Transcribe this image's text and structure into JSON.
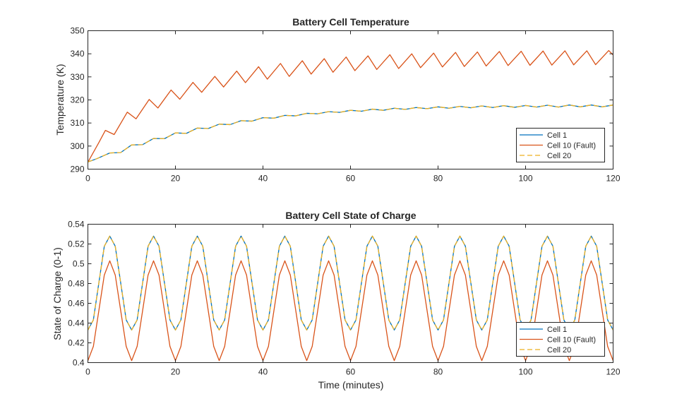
{
  "chart_data": [
    {
      "type": "line",
      "title": "Battery Cell Temperature",
      "xlabel": "",
      "ylabel": "Temperature (K)",
      "xlim": [
        0,
        120
      ],
      "ylim": [
        290,
        350
      ],
      "xticks": [
        0,
        20,
        40,
        60,
        80,
        100,
        120
      ],
      "yticks": [
        290,
        300,
        310,
        320,
        330,
        340,
        350
      ],
      "xtick_labels": [
        "0",
        "20",
        "40",
        "60",
        "80",
        "100",
        "120"
      ],
      "ytick_labels": [
        "290",
        "300",
        "310",
        "320",
        "330",
        "340",
        "350"
      ],
      "grid": false,
      "legend_position": "bottom-right",
      "series": [
        {
          "name": "Cell 1",
          "color": "#0072BD",
          "dash": "solid",
          "x": [
            0,
            2,
            5,
            7.5,
            10,
            12.5,
            15,
            17.5,
            20,
            22.5,
            25,
            27.5,
            30,
            32.5,
            35,
            37.5,
            40,
            42.5,
            45,
            47.5,
            50,
            52.5,
            55,
            57.5,
            60,
            62.5,
            65,
            67.5,
            70,
            72.5,
            75,
            77.5,
            80,
            82.5,
            85,
            87.5,
            90,
            92.5,
            95,
            97.5,
            100,
            102.5,
            105,
            107.5,
            110,
            112.5,
            115,
            117.5,
            120
          ],
          "y": [
            293.1,
            294.5,
            297.0,
            297.2,
            300.5,
            300.6,
            303.3,
            303.2,
            305.7,
            305.5,
            307.8,
            307.6,
            309.5,
            309.3,
            311.0,
            310.8,
            312.3,
            312.1,
            313.3,
            313.1,
            314.2,
            314.0,
            314.9,
            314.6,
            315.5,
            315.1,
            316.0,
            315.5,
            316.4,
            315.9,
            316.7,
            316.2,
            317.0,
            316.4,
            317.2,
            316.6,
            317.4,
            316.7,
            317.5,
            316.8,
            317.6,
            316.9,
            317.7,
            316.9,
            317.8,
            317.0,
            317.8,
            317.0,
            317.8
          ]
        },
        {
          "name": "Cell 10 (Fault)",
          "color": "#D95319",
          "dash": "solid",
          "x": [
            0,
            2.5,
            4,
            6,
            9,
            11,
            14,
            16,
            19,
            21,
            24,
            26,
            29,
            31,
            34,
            36,
            39,
            41,
            44,
            46,
            49,
            51,
            54,
            56,
            59,
            61,
            64,
            66,
            69,
            71,
            74,
            76,
            79,
            81,
            84,
            86,
            89,
            91,
            94,
            96,
            99,
            101,
            104,
            106,
            109,
            111,
            114,
            116,
            119,
            120
          ],
          "y": [
            293.0,
            301.5,
            306.8,
            305.0,
            314.7,
            311.8,
            320.2,
            316.5,
            324.3,
            320.3,
            327.6,
            323.3,
            330.2,
            325.6,
            332.5,
            327.5,
            334.4,
            329.0,
            335.8,
            330.2,
            337.0,
            331.2,
            337.9,
            332.0,
            338.6,
            332.7,
            339.1,
            333.2,
            339.6,
            333.6,
            340.0,
            334.0,
            340.3,
            334.3,
            340.6,
            334.5,
            340.8,
            334.7,
            341.0,
            334.9,
            341.1,
            335.0,
            341.2,
            335.1,
            341.3,
            335.2,
            341.3,
            335.3,
            341.4,
            339.5
          ]
        },
        {
          "name": "Cell 20",
          "color": "#EDB120",
          "dash": "dashed",
          "x": [
            0,
            2,
            5,
            7.5,
            10,
            12.5,
            15,
            17.5,
            20,
            22.5,
            25,
            27.5,
            30,
            32.5,
            35,
            37.5,
            40,
            42.5,
            45,
            47.5,
            50,
            52.5,
            55,
            57.5,
            60,
            62.5,
            65,
            67.5,
            70,
            72.5,
            75,
            77.5,
            80,
            82.5,
            85,
            87.5,
            90,
            92.5,
            95,
            97.5,
            100,
            102.5,
            105,
            107.5,
            110,
            112.5,
            115,
            117.5,
            120
          ],
          "y": [
            293.1,
            294.5,
            297.0,
            297.2,
            300.5,
            300.6,
            303.3,
            303.2,
            305.7,
            305.5,
            307.8,
            307.6,
            309.5,
            309.3,
            311.0,
            310.8,
            312.3,
            312.1,
            313.3,
            313.1,
            314.2,
            314.0,
            314.9,
            314.6,
            315.5,
            315.1,
            316.0,
            315.5,
            316.4,
            315.9,
            316.7,
            316.2,
            317.0,
            316.4,
            317.2,
            316.6,
            317.4,
            316.7,
            317.5,
            316.8,
            317.6,
            316.9,
            317.7,
            316.9,
            317.8,
            317.0,
            317.8,
            317.0,
            317.8
          ]
        }
      ]
    },
    {
      "type": "line",
      "title": "Battery Cell State of Charge",
      "xlabel": "Time (minutes)",
      "ylabel": "State of Charge (0-1)",
      "xlim": [
        0,
        120
      ],
      "ylim": [
        0.4,
        0.54
      ],
      "xticks": [
        0,
        20,
        40,
        60,
        80,
        100,
        120
      ],
      "yticks": [
        0.4,
        0.42,
        0.44,
        0.46,
        0.48,
        0.5,
        0.52,
        0.54
      ],
      "xtick_labels": [
        "0",
        "20",
        "40",
        "60",
        "80",
        "100",
        "120"
      ],
      "ytick_labels": [
        "0.4",
        "0.42",
        "0.44",
        "0.46",
        "0.48",
        "0.5",
        "0.52",
        "0.54"
      ],
      "grid": false,
      "legend_position": "bottom-right",
      "series": [
        {
          "name": "Cell 1",
          "color": "#0072BD",
          "dash": "solid",
          "x": [
            0,
            1.25,
            2.5,
            3.75,
            5,
            6.25,
            7.5,
            8.75,
            10,
            11.25,
            12.5,
            13.75,
            15,
            16.25,
            17.5,
            18.75,
            20,
            21.25,
            22.5,
            23.75,
            25,
            26.25,
            27.5,
            28.75,
            30,
            31.25,
            32.5,
            33.75,
            35,
            36.25,
            37.5,
            38.75,
            40,
            41.25,
            42.5,
            43.75,
            45,
            46.25,
            47.5,
            48.75,
            50,
            51.25,
            52.5,
            53.75,
            55,
            56.25,
            57.5,
            58.75,
            60,
            61.25,
            62.5,
            63.75,
            65,
            66.25,
            67.5,
            68.75,
            70,
            71.25,
            72.5,
            73.75,
            75,
            76.25,
            77.5,
            78.75,
            80,
            81.25,
            82.5,
            83.75,
            85,
            86.25,
            87.5,
            88.75,
            90,
            91.25,
            92.5,
            93.75,
            95,
            96.25,
            97.5,
            98.75,
            100,
            101.25,
            102.5,
            103.75,
            105,
            106.25,
            107.5,
            108.75,
            110,
            111.25,
            112.5,
            113.75,
            115,
            116.25,
            117.5,
            118.75,
            120
          ],
          "y": [
            0.433,
            0.4432,
            0.4805,
            0.5177,
            0.528,
            0.5177,
            0.4805,
            0.4432,
            0.433,
            0.4432,
            0.4805,
            0.5177,
            0.528,
            0.5177,
            0.4805,
            0.4432,
            0.433,
            0.4432,
            0.4805,
            0.5177,
            0.528,
            0.5177,
            0.4805,
            0.4432,
            0.433,
            0.4432,
            0.4805,
            0.5177,
            0.528,
            0.5177,
            0.4805,
            0.4432,
            0.433,
            0.4432,
            0.4805,
            0.5177,
            0.528,
            0.5177,
            0.4805,
            0.4432,
            0.433,
            0.4432,
            0.4805,
            0.5177,
            0.528,
            0.5177,
            0.4805,
            0.4432,
            0.433,
            0.4432,
            0.4805,
            0.5177,
            0.528,
            0.5177,
            0.4805,
            0.4432,
            0.433,
            0.4432,
            0.4805,
            0.5177,
            0.528,
            0.5177,
            0.4805,
            0.4432,
            0.433,
            0.4432,
            0.4805,
            0.5177,
            0.528,
            0.5177,
            0.4805,
            0.4432,
            0.433,
            0.4432,
            0.4805,
            0.5177,
            0.528,
            0.5177,
            0.4805,
            0.4432,
            0.433,
            0.4432,
            0.4805,
            0.5177,
            0.528,
            0.5177,
            0.4805,
            0.4432,
            0.433,
            0.4432,
            0.4805,
            0.5177,
            0.528,
            0.5177,
            0.4805,
            0.4432,
            0.433
          ]
        },
        {
          "name": "Cell 10 (Fault)",
          "color": "#D95319",
          "dash": "solid",
          "x": [
            0,
            1.25,
            2.5,
            3.75,
            5,
            6.25,
            7.5,
            8.75,
            10,
            11.25,
            12.5,
            13.75,
            15,
            16.25,
            17.5,
            18.75,
            20,
            21.25,
            22.5,
            23.75,
            25,
            26.25,
            27.5,
            28.75,
            30,
            31.25,
            32.5,
            33.75,
            35,
            36.25,
            37.5,
            38.75,
            40,
            41.25,
            42.5,
            43.75,
            45,
            46.25,
            47.5,
            48.75,
            50,
            51.25,
            52.5,
            53.75,
            55,
            56.25,
            57.5,
            58.75,
            60,
            61.25,
            62.5,
            63.75,
            65,
            66.25,
            67.5,
            68.75,
            70,
            71.25,
            72.5,
            73.75,
            75,
            76.25,
            77.5,
            78.75,
            80,
            81.25,
            82.5,
            83.75,
            85,
            86.25,
            87.5,
            88.75,
            90,
            91.25,
            92.5,
            93.75,
            95,
            96.25,
            97.5,
            98.75,
            100,
            101.25,
            102.5,
            103.75,
            105,
            106.25,
            107.5,
            108.75,
            110,
            111.25,
            112.5,
            113.75,
            115,
            116.25,
            117.5,
            118.75,
            120
          ],
          "y": [
            0.402,
            0.4164,
            0.4525,
            0.4886,
            0.503,
            0.4886,
            0.4525,
            0.4164,
            0.402,
            0.4164,
            0.4525,
            0.4886,
            0.503,
            0.4886,
            0.4525,
            0.4164,
            0.402,
            0.4164,
            0.4525,
            0.4886,
            0.503,
            0.4886,
            0.4525,
            0.4164,
            0.402,
            0.4164,
            0.4525,
            0.4886,
            0.503,
            0.4886,
            0.4525,
            0.4164,
            0.402,
            0.4164,
            0.4525,
            0.4886,
            0.503,
            0.4886,
            0.4525,
            0.4164,
            0.402,
            0.4164,
            0.4525,
            0.4886,
            0.503,
            0.4886,
            0.4525,
            0.4164,
            0.402,
            0.4164,
            0.4525,
            0.4886,
            0.503,
            0.4886,
            0.4525,
            0.4164,
            0.402,
            0.4164,
            0.4525,
            0.4886,
            0.503,
            0.4886,
            0.4525,
            0.4164,
            0.402,
            0.4164,
            0.4525,
            0.4886,
            0.503,
            0.4886,
            0.4525,
            0.4164,
            0.402,
            0.4164,
            0.4525,
            0.4886,
            0.503,
            0.4886,
            0.4525,
            0.4164,
            0.402,
            0.4164,
            0.4525,
            0.4886,
            0.503,
            0.4886,
            0.4525,
            0.4164,
            0.402,
            0.4164,
            0.4525,
            0.4886,
            0.503,
            0.4886,
            0.4525,
            0.4164,
            0.402
          ]
        },
        {
          "name": "Cell 20",
          "color": "#EDB120",
          "dash": "dashed",
          "x": [
            0,
            1.25,
            2.5,
            3.75,
            5,
            6.25,
            7.5,
            8.75,
            10,
            11.25,
            12.5,
            13.75,
            15,
            16.25,
            17.5,
            18.75,
            20,
            21.25,
            22.5,
            23.75,
            25,
            26.25,
            27.5,
            28.75,
            30,
            31.25,
            32.5,
            33.75,
            35,
            36.25,
            37.5,
            38.75,
            40,
            41.25,
            42.5,
            43.75,
            45,
            46.25,
            47.5,
            48.75,
            50,
            51.25,
            52.5,
            53.75,
            55,
            56.25,
            57.5,
            58.75,
            60,
            61.25,
            62.5,
            63.75,
            65,
            66.25,
            67.5,
            68.75,
            70,
            71.25,
            72.5,
            73.75,
            75,
            76.25,
            77.5,
            78.75,
            80,
            81.25,
            82.5,
            83.75,
            85,
            86.25,
            87.5,
            88.75,
            90,
            91.25,
            92.5,
            93.75,
            95,
            96.25,
            97.5,
            98.75,
            100,
            101.25,
            102.5,
            103.75,
            105,
            106.25,
            107.5,
            108.75,
            110,
            111.25,
            112.5,
            113.75,
            115,
            116.25,
            117.5,
            118.75,
            120
          ],
          "y": [
            0.433,
            0.4432,
            0.4805,
            0.5177,
            0.528,
            0.5177,
            0.4805,
            0.4432,
            0.433,
            0.4432,
            0.4805,
            0.5177,
            0.528,
            0.5177,
            0.4805,
            0.4432,
            0.433,
            0.4432,
            0.4805,
            0.5177,
            0.528,
            0.5177,
            0.4805,
            0.4432,
            0.433,
            0.4432,
            0.4805,
            0.5177,
            0.528,
            0.5177,
            0.4805,
            0.4432,
            0.433,
            0.4432,
            0.4805,
            0.5177,
            0.528,
            0.5177,
            0.4805,
            0.4432,
            0.433,
            0.4432,
            0.4805,
            0.5177,
            0.528,
            0.5177,
            0.4805,
            0.4432,
            0.433,
            0.4432,
            0.4805,
            0.5177,
            0.528,
            0.5177,
            0.4805,
            0.4432,
            0.433,
            0.4432,
            0.4805,
            0.5177,
            0.528,
            0.5177,
            0.4805,
            0.4432,
            0.433,
            0.4432,
            0.4805,
            0.5177,
            0.528,
            0.5177,
            0.4805,
            0.4432,
            0.433,
            0.4432,
            0.4805,
            0.5177,
            0.528,
            0.5177,
            0.4805,
            0.4432,
            0.433,
            0.4432,
            0.4805,
            0.5177,
            0.528,
            0.5177,
            0.4805,
            0.4432,
            0.433,
            0.4432,
            0.4805,
            0.5177,
            0.528,
            0.5177,
            0.4805,
            0.4432,
            0.433
          ]
        }
      ]
    }
  ]
}
